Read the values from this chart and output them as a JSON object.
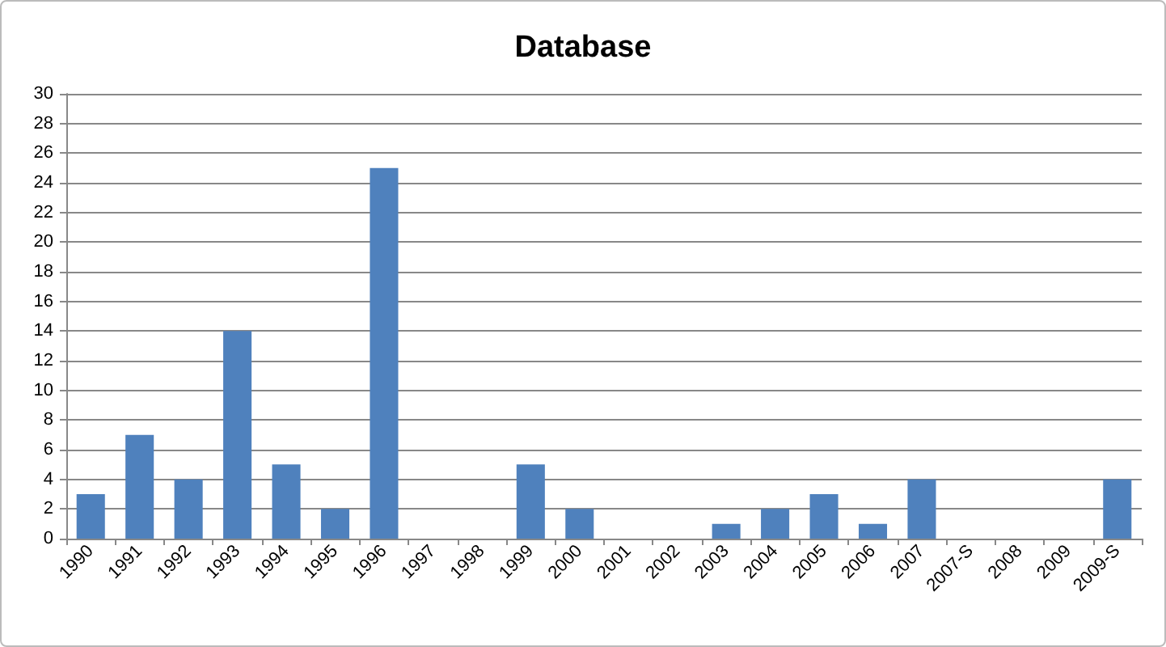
{
  "chart_data": {
    "type": "bar",
    "title": "Database",
    "categories": [
      "1990",
      "1991",
      "1992",
      "1993",
      "1994",
      "1995",
      "1996",
      "1997",
      "1998",
      "1999",
      "2000",
      "2001",
      "2002",
      "2003",
      "2004",
      "2005",
      "2006",
      "2007",
      "2007-S",
      "2008",
      "2009",
      "2009-S"
    ],
    "values": [
      3,
      7,
      4,
      14,
      5,
      2,
      25,
      0,
      0,
      5,
      2,
      0,
      0,
      1,
      2,
      3,
      1,
      4,
      0,
      0,
      0,
      4
    ],
    "color": "#4f81bd",
    "ylim": [
      0,
      30
    ],
    "yticks": [
      0,
      2,
      4,
      6,
      8,
      10,
      12,
      14,
      16,
      18,
      20,
      22,
      24,
      26,
      28,
      30
    ],
    "grid": "y"
  }
}
